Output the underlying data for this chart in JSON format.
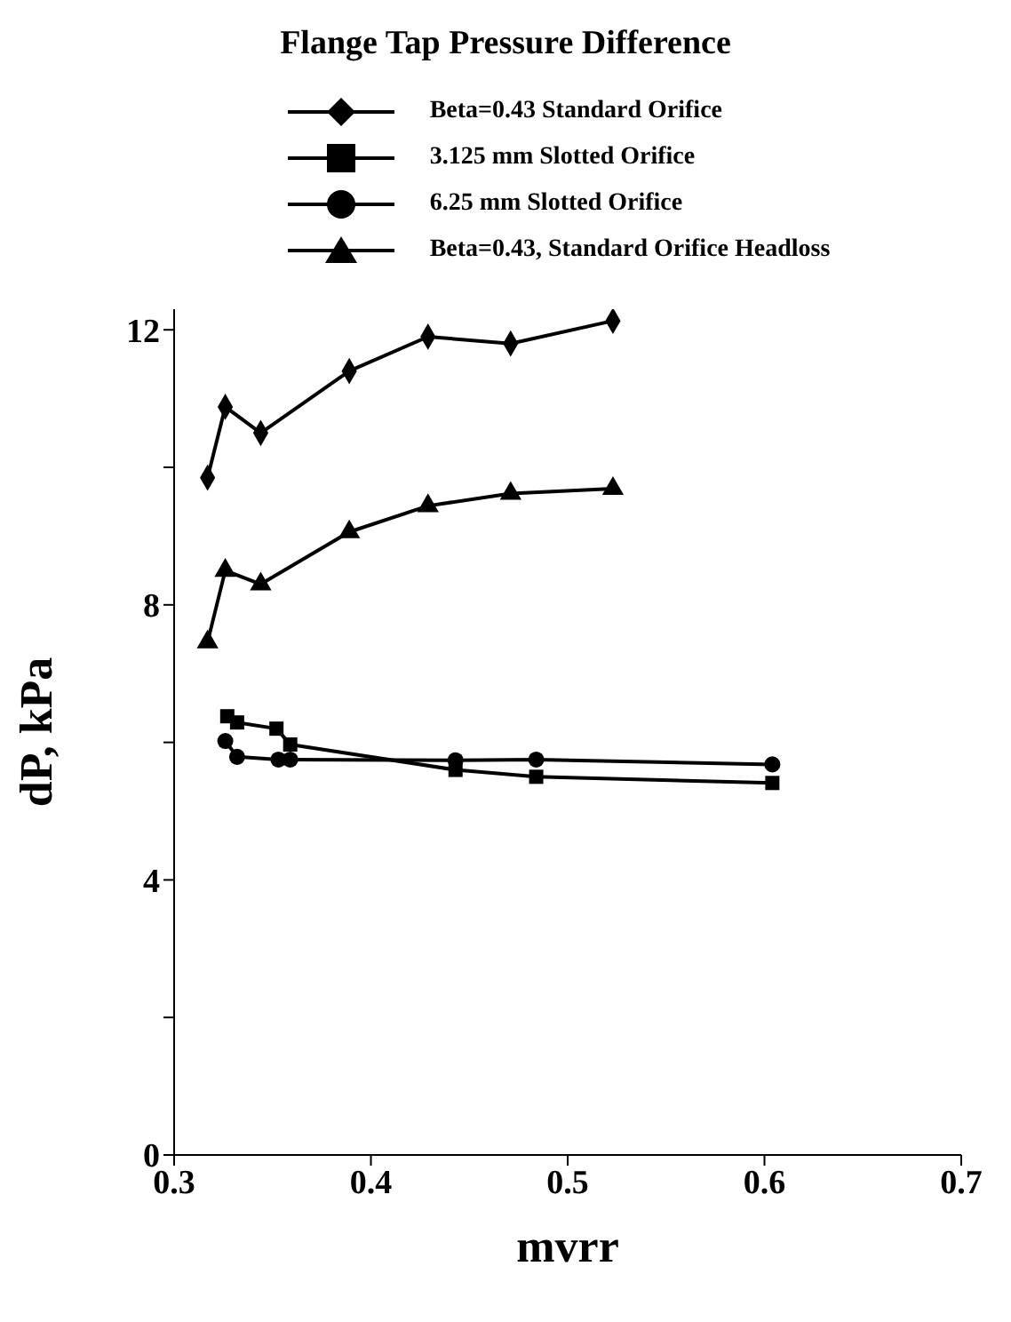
{
  "chart_data": {
    "type": "line",
    "title": "Flange Tap Pressure Difference",
    "xlabel": "mvrr",
    "ylabel": "dP, kPa",
    "xlim": [
      0.3,
      0.7
    ],
    "xticks": [
      0.3,
      0.4,
      0.5,
      0.6,
      0.7
    ],
    "ylim": [
      0,
      12.3
    ],
    "yticks": [
      0,
      {
        "value": 2,
        "label": null
      },
      4,
      {
        "value": 6,
        "label": null
      },
      8,
      {
        "value": 10,
        "label": null
      },
      12
    ],
    "grid": false,
    "legend": "top",
    "line_style": "solid",
    "series": [
      {
        "name": "Beta=0.43 Standard Orifice",
        "color": "#000000",
        "marker": "diamond",
        "x": [
          0.317,
          0.326,
          0.344,
          0.389,
          0.429,
          0.471,
          0.523
        ],
        "values": [
          9.85,
          10.88,
          10.5,
          11.4,
          11.9,
          11.8,
          12.13
        ]
      },
      {
        "name": "3.125 mm Slotted Orifice",
        "color": "#000000",
        "marker": "square",
        "x": [
          0.327,
          0.332,
          0.352,
          0.359,
          0.443,
          0.484,
          0.604
        ],
        "values": [
          6.38,
          6.29,
          6.2,
          5.97,
          5.6,
          5.5,
          5.41
        ]
      },
      {
        "name": "6.25 mm  Slotted Orifice",
        "color": "#000000",
        "marker": "circle",
        "x": [
          0.326,
          0.332,
          0.353,
          0.359,
          0.443,
          0.484,
          0.604
        ],
        "values": [
          6.02,
          5.79,
          5.75,
          5.75,
          5.74,
          5.75,
          5.68
        ]
      },
      {
        "name": "Beta=0.43, Standard Orifice Headloss",
        "color": "#000000",
        "marker": "triangle",
        "x": [
          0.317,
          0.326,
          0.344,
          0.389,
          0.429,
          0.471,
          0.523
        ],
        "values": [
          7.46,
          8.5,
          8.3,
          9.06,
          9.44,
          9.62,
          9.69
        ]
      }
    ]
  }
}
